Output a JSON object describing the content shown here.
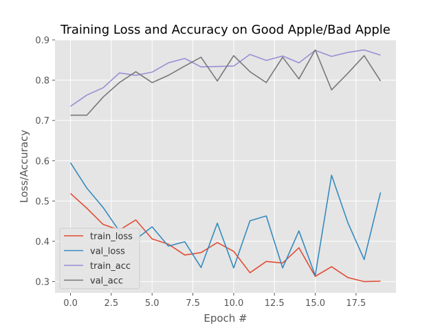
{
  "chart_data": {
    "type": "line",
    "title": "Training Loss and Accuracy on Good Apple/Bad Apple",
    "xlabel": "Epoch #",
    "ylabel": "Loss/Accuracy",
    "xlim": [
      -0.95,
      19.95
    ],
    "ylim": [
      0.272,
      0.9
    ],
    "xticks": [
      0,
      2.5,
      5,
      7.5,
      10,
      12.5,
      15,
      17.5
    ],
    "xtick_labels": [
      "0.0",
      "2.5",
      "5.0",
      "7.5",
      "10.0",
      "12.5",
      "15.0",
      "17.5"
    ],
    "yticks": [
      0.3,
      0.4,
      0.5,
      0.6,
      0.7,
      0.8,
      0.9
    ],
    "ytick_labels": [
      "0.3",
      "0.4",
      "0.5",
      "0.6",
      "0.7",
      "0.8",
      "0.9"
    ],
    "grid": true,
    "style": "ggplot",
    "legend_position": "lower-left",
    "x": [
      0,
      1,
      2,
      3,
      4,
      5,
      6,
      7,
      8,
      9,
      10,
      11,
      12,
      13,
      14,
      15,
      16,
      17,
      18,
      19
    ],
    "series": [
      {
        "name": "train_loss",
        "color": "#E24A33",
        "values": [
          0.519,
          0.482,
          0.442,
          0.428,
          0.453,
          0.406,
          0.393,
          0.366,
          0.372,
          0.397,
          0.375,
          0.322,
          0.35,
          0.346,
          0.384,
          0.313,
          0.337,
          0.31,
          0.3,
          0.301
        ]
      },
      {
        "name": "val_loss",
        "color": "#348ABD",
        "values": [
          0.595,
          0.532,
          0.484,
          0.425,
          0.405,
          0.436,
          0.388,
          0.399,
          0.335,
          0.445,
          0.334,
          0.451,
          0.463,
          0.334,
          0.426,
          0.315,
          0.564,
          0.446,
          0.355,
          0.521
        ]
      },
      {
        "name": "train_acc",
        "color": "#988ED5",
        "values": [
          0.735,
          0.763,
          0.781,
          0.818,
          0.812,
          0.82,
          0.843,
          0.854,
          0.833,
          0.834,
          0.835,
          0.864,
          0.849,
          0.86,
          0.843,
          0.874,
          0.859,
          0.869,
          0.875,
          0.862
        ]
      },
      {
        "name": "val_acc",
        "color": "#777777",
        "values": [
          0.713,
          0.713,
          0.758,
          0.794,
          0.821,
          0.794,
          0.812,
          0.835,
          0.857,
          0.798,
          0.861,
          0.821,
          0.794,
          0.857,
          0.803,
          0.875,
          0.776,
          0.817,
          0.861,
          0.798
        ]
      }
    ]
  }
}
